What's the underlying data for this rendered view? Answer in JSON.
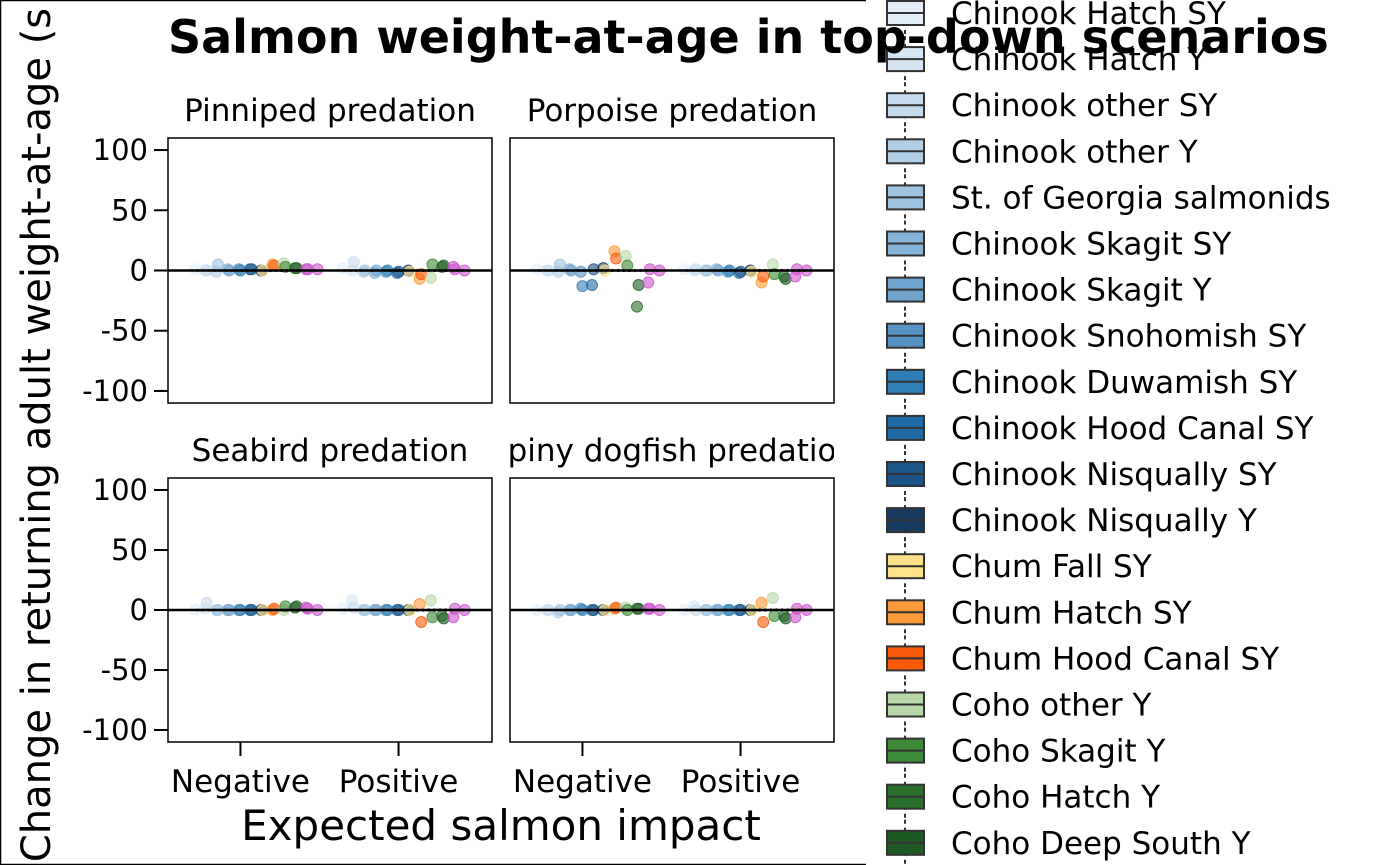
{
  "chart_data": {
    "type": "scatter",
    "title": "Salmon weight-at-age in top-down scenarios",
    "ylabel": "Change in returning adult weight-at-age (s",
    "xlabel": "Expected salmon impact",
    "categories": [
      "Negative",
      "Positive"
    ],
    "ylim": [
      -110,
      110
    ],
    "yticks": [
      100,
      50,
      0,
      -50,
      -100
    ],
    "ytick_labels": [
      "100",
      "50",
      "0",
      "-50",
      "-100"
    ],
    "zero_line": 0,
    "panels": [
      {
        "title": "Pinniped predation",
        "groups": [
          {
            "category": "Negative",
            "points": [
              [
                0,
                1
              ],
              [
                1,
                0
              ],
              [
                2,
                0
              ],
              [
                3,
                -1
              ],
              [
                4,
                5
              ],
              [
                5,
                1
              ],
              [
                6,
                0
              ],
              [
                7,
                1
              ],
              [
                8,
                0
              ],
              [
                9,
                1
              ],
              [
                10,
                1
              ],
              [
                11,
                0
              ],
              [
                12,
                0
              ],
              [
                13,
                5
              ],
              [
                14,
                4
              ],
              [
                15,
                6
              ],
              [
                16,
                3
              ],
              [
                17,
                2
              ],
              [
                18,
                2
              ],
              [
                19,
                1
              ],
              [
                20,
                1
              ],
              [
                21,
                1
              ]
            ]
          },
          {
            "category": "Positive",
            "points": [
              [
                0,
                2
              ],
              [
                1,
                0
              ],
              [
                2,
                7
              ],
              [
                3,
                -1
              ],
              [
                4,
                0
              ],
              [
                5,
                -2
              ],
              [
                6,
                0
              ],
              [
                7,
                -1
              ],
              [
                8,
                0
              ],
              [
                9,
                -2
              ],
              [
                10,
                -1
              ],
              [
                11,
                0
              ],
              [
                12,
                -1
              ],
              [
                13,
                -7
              ],
              [
                14,
                -3
              ],
              [
                15,
                -6
              ],
              [
                16,
                5
              ],
              [
                17,
                3
              ],
              [
                18,
                4
              ],
              [
                19,
                3
              ],
              [
                20,
                1
              ],
              [
                21,
                0
              ]
            ]
          }
        ]
      },
      {
        "title": "Porpoise predation",
        "groups": [
          {
            "category": "Negative",
            "points": [
              [
                0,
                1
              ],
              [
                1,
                0
              ],
              [
                2,
                0
              ],
              [
                3,
                -1
              ],
              [
                4,
                5
              ],
              [
                5,
                1
              ],
              [
                6,
                0
              ],
              [
                7,
                -1
              ],
              [
                8,
                -13
              ],
              [
                9,
                -12
              ],
              [
                10,
                1
              ],
              [
                11,
                2
              ],
              [
                12,
                0
              ],
              [
                13,
                16
              ],
              [
                14,
                10
              ],
              [
                15,
                12
              ],
              [
                16,
                4
              ],
              [
                17,
                -30
              ],
              [
                18,
                -12
              ],
              [
                19,
                -10
              ],
              [
                20,
                1
              ],
              [
                21,
                0
              ]
            ]
          },
          {
            "category": "Positive",
            "points": [
              [
                0,
                1
              ],
              [
                1,
                0
              ],
              [
                2,
                1
              ],
              [
                3,
                0
              ],
              [
                4,
                0
              ],
              [
                5,
                1
              ],
              [
                6,
                0
              ],
              [
                7,
                -1
              ],
              [
                8,
                0
              ],
              [
                9,
                -2
              ],
              [
                10,
                -1
              ],
              [
                11,
                0
              ],
              [
                12,
                -1
              ],
              [
                13,
                -10
              ],
              [
                14,
                -5
              ],
              [
                15,
                5
              ],
              [
                16,
                -3
              ],
              [
                17,
                -5
              ],
              [
                18,
                -7
              ],
              [
                19,
                -5
              ],
              [
                20,
                1
              ],
              [
                21,
                0
              ]
            ]
          }
        ]
      },
      {
        "title": "Seabird predation",
        "groups": [
          {
            "category": "Negative",
            "points": [
              [
                0,
                0
              ],
              [
                1,
                1
              ],
              [
                2,
                6
              ],
              [
                3,
                0
              ],
              [
                4,
                0
              ],
              [
                5,
                0
              ],
              [
                6,
                0
              ],
              [
                7,
                0
              ],
              [
                8,
                0
              ],
              [
                9,
                0
              ],
              [
                10,
                0
              ],
              [
                11,
                0
              ],
              [
                12,
                0
              ],
              [
                13,
                0
              ],
              [
                14,
                1
              ],
              [
                15,
                0
              ],
              [
                16,
                3
              ],
              [
                17,
                2
              ],
              [
                18,
                3
              ],
              [
                19,
                2
              ],
              [
                20,
                1
              ],
              [
                21,
                0
              ]
            ]
          },
          {
            "category": "Positive",
            "points": [
              [
                0,
                1
              ],
              [
                1,
                8
              ],
              [
                2,
                2
              ],
              [
                3,
                0
              ],
              [
                4,
                0
              ],
              [
                5,
                0
              ],
              [
                6,
                0
              ],
              [
                7,
                0
              ],
              [
                8,
                0
              ],
              [
                9,
                0
              ],
              [
                10,
                0
              ],
              [
                11,
                0
              ],
              [
                12,
                0
              ],
              [
                13,
                5
              ],
              [
                14,
                -10
              ],
              [
                15,
                8
              ],
              [
                16,
                -6
              ],
              [
                17,
                -5
              ],
              [
                18,
                -7
              ],
              [
                19,
                -6
              ],
              [
                20,
                1
              ],
              [
                21,
                0
              ]
            ]
          }
        ]
      },
      {
        "title": "Spiny dogfish predation",
        "groups": [
          {
            "category": "Negative",
            "points": [
              [
                0,
                0
              ],
              [
                1,
                0
              ],
              [
                2,
                0
              ],
              [
                3,
                -2
              ],
              [
                4,
                0
              ],
              [
                5,
                0
              ],
              [
                6,
                0
              ],
              [
                7,
                1
              ],
              [
                8,
                0
              ],
              [
                9,
                0
              ],
              [
                10,
                0
              ],
              [
                11,
                0
              ],
              [
                12,
                0
              ],
              [
                13,
                1
              ],
              [
                14,
                2
              ],
              [
                15,
                2
              ],
              [
                16,
                0
              ],
              [
                17,
                1
              ],
              [
                18,
                1
              ],
              [
                19,
                1
              ],
              [
                20,
                1
              ],
              [
                21,
                0
              ]
            ]
          },
          {
            "category": "Positive",
            "points": [
              [
                0,
                0
              ],
              [
                1,
                3
              ],
              [
                2,
                0
              ],
              [
                3,
                0
              ],
              [
                4,
                0
              ],
              [
                5,
                0
              ],
              [
                6,
                0
              ],
              [
                7,
                0
              ],
              [
                8,
                0
              ],
              [
                9,
                0
              ],
              [
                10,
                0
              ],
              [
                11,
                0
              ],
              [
                12,
                0
              ],
              [
                13,
                6
              ],
              [
                14,
                -10
              ],
              [
                15,
                10
              ],
              [
                16,
                -5
              ],
              [
                17,
                -5
              ],
              [
                18,
                -7
              ],
              [
                19,
                -6
              ],
              [
                20,
                1
              ],
              [
                21,
                0
              ]
            ]
          }
        ]
      }
    ],
    "legend": {
      "placement": "right",
      "entries": [
        {
          "label": "Chinook Hatch SY",
          "color": "#e3eef8"
        },
        {
          "label": "Chinook Hatch Y",
          "color": "#d6e6f4"
        },
        {
          "label": "Chinook other SY",
          "color": "#c6dbef"
        },
        {
          "label": "Chinook other Y",
          "color": "#b0cfe6"
        },
        {
          "label": "St. of Georgia salmonids",
          "color": "#9dc3e0"
        },
        {
          "label": "Chinook Skagit SY",
          "color": "#86b4d8"
        },
        {
          "label": "Chinook Skagit Y",
          "color": "#6fa4cf"
        },
        {
          "label": "Chinook Snohomish SY",
          "color": "#5693c4"
        },
        {
          "label": "Chinook Duwamish SY",
          "color": "#2f7eb5"
        },
        {
          "label": "Chinook Hood Canal SY",
          "color": "#1f6aa5"
        },
        {
          "label": "Chinook Nisqually SY",
          "color": "#1c5587"
        },
        {
          "label": "Chinook Nisqually Y",
          "color": "#163b5f"
        },
        {
          "label": "Chum Fall SY",
          "color": "#fde28a"
        },
        {
          "label": "Chum Hatch SY",
          "color": "#fd9a3a"
        },
        {
          "label": "Chum Hood Canal SY",
          "color": "#f85a0a"
        },
        {
          "label": "Coho other Y",
          "color": "#b8d8a8"
        },
        {
          "label": "Coho Skagit Y",
          "color": "#3d8a36"
        },
        {
          "label": "Coho Hatch Y",
          "color": "#2a6f2a"
        },
        {
          "label": "Coho Deep South Y",
          "color": "#1f5a25"
        }
      ],
      "extra_point_color": "#cc55cc"
    }
  }
}
